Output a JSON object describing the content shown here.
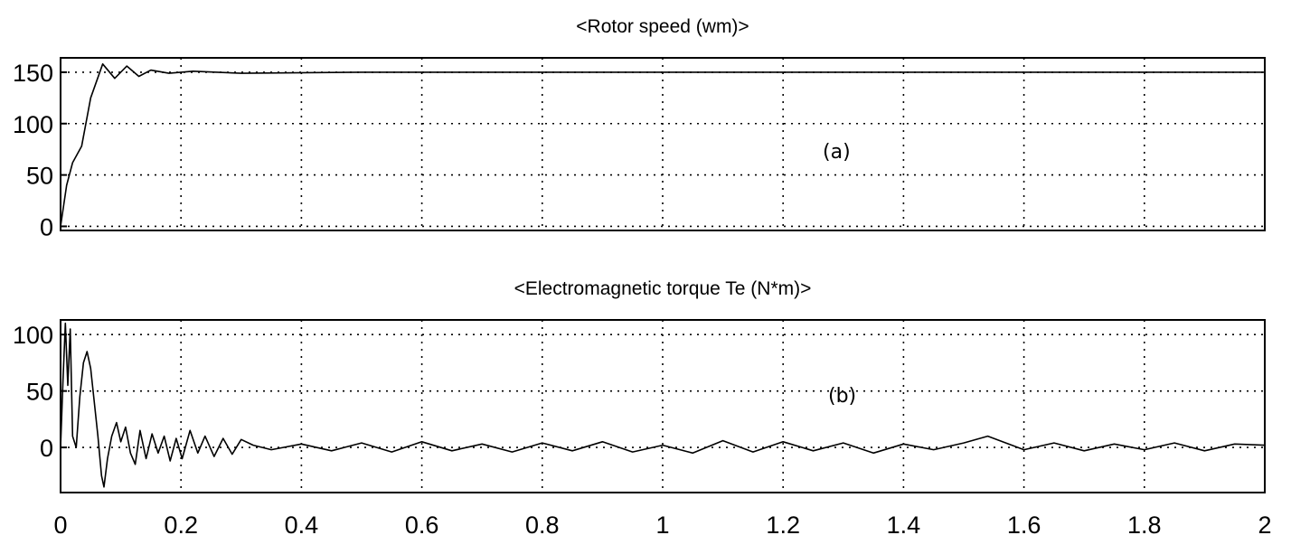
{
  "chart_data": [
    {
      "type": "line",
      "title": "<Rotor speed (wm)>",
      "annotation": "(a)",
      "xlim": [
        0,
        2
      ],
      "ylim": [
        -4,
        164
      ],
      "yticks": [
        0,
        50,
        100,
        150
      ],
      "yticklabels": [
        "0",
        "50",
        "100",
        "150"
      ],
      "grid": true,
      "series": [
        {
          "x": [
            0,
            0.01,
            0.02,
            0.035,
            0.05,
            0.07,
            0.09,
            0.11,
            0.13,
            0.15,
            0.18,
            0.22,
            0.3,
            0.5,
            1.0,
            1.5,
            2.0
          ],
          "y": [
            0,
            40,
            62,
            78,
            125,
            158,
            144,
            156,
            146,
            152,
            149,
            151,
            149,
            150,
            150,
            150,
            150
          ]
        }
      ]
    },
    {
      "type": "line",
      "title": "<Electromagnetic torque Te (N*m)>",
      "annotation": "(b)",
      "xlim": [
        0,
        2
      ],
      "ylim": [
        -40,
        113
      ],
      "yticks": [
        0,
        50,
        100
      ],
      "yticklabels": [
        "0",
        "50",
        "100"
      ],
      "xticks": [
        0,
        0.2,
        0.4,
        0.6,
        0.8,
        1,
        1.2,
        1.4,
        1.6,
        1.8,
        2
      ],
      "xticklabels": [
        "0",
        "0.2",
        "0.4",
        "0.6",
        "0.8",
        "1",
        "1.2",
        "1.4",
        "1.6",
        "1.8",
        "2"
      ],
      "grid": true,
      "series": [
        {
          "x": [
            0,
            0.004,
            0.008,
            0.012,
            0.016,
            0.02,
            0.026,
            0.032,
            0.038,
            0.044,
            0.05,
            0.056,
            0.062,
            0.068,
            0.072,
            0.078,
            0.085,
            0.093,
            0.1,
            0.108,
            0.116,
            0.124,
            0.132,
            0.142,
            0.152,
            0.162,
            0.172,
            0.182,
            0.192,
            0.202,
            0.215,
            0.228,
            0.24,
            0.255,
            0.27,
            0.285,
            0.3,
            0.32,
            0.35,
            0.4,
            0.45,
            0.5,
            0.55,
            0.6,
            0.65,
            0.7,
            0.75,
            0.8,
            0.85,
            0.9,
            0.95,
            1.0,
            1.05,
            1.1,
            1.15,
            1.2,
            1.25,
            1.3,
            1.35,
            1.4,
            1.45,
            1.5,
            1.54,
            1.6,
            1.65,
            1.7,
            1.75,
            1.8,
            1.85,
            1.9,
            1.95,
            2.0
          ],
          "y": [
            0,
            60,
            110,
            55,
            105,
            10,
            0,
            45,
            75,
            85,
            70,
            40,
            10,
            -25,
            -35,
            -10,
            10,
            22,
            5,
            18,
            -5,
            -15,
            15,
            -10,
            12,
            -5,
            10,
            -12,
            8,
            -10,
            15,
            -5,
            10,
            -8,
            8,
            -6,
            7,
            2,
            -2,
            3,
            -3,
            4,
            -4,
            5,
            -3,
            3,
            -4,
            4,
            -3,
            5,
            -4,
            2,
            -5,
            6,
            -4,
            5,
            -3,
            4,
            -5,
            3,
            -2,
            4,
            10,
            -2,
            4,
            -3,
            3,
            -2,
            4,
            -3,
            3,
            2
          ]
        }
      ]
    }
  ]
}
